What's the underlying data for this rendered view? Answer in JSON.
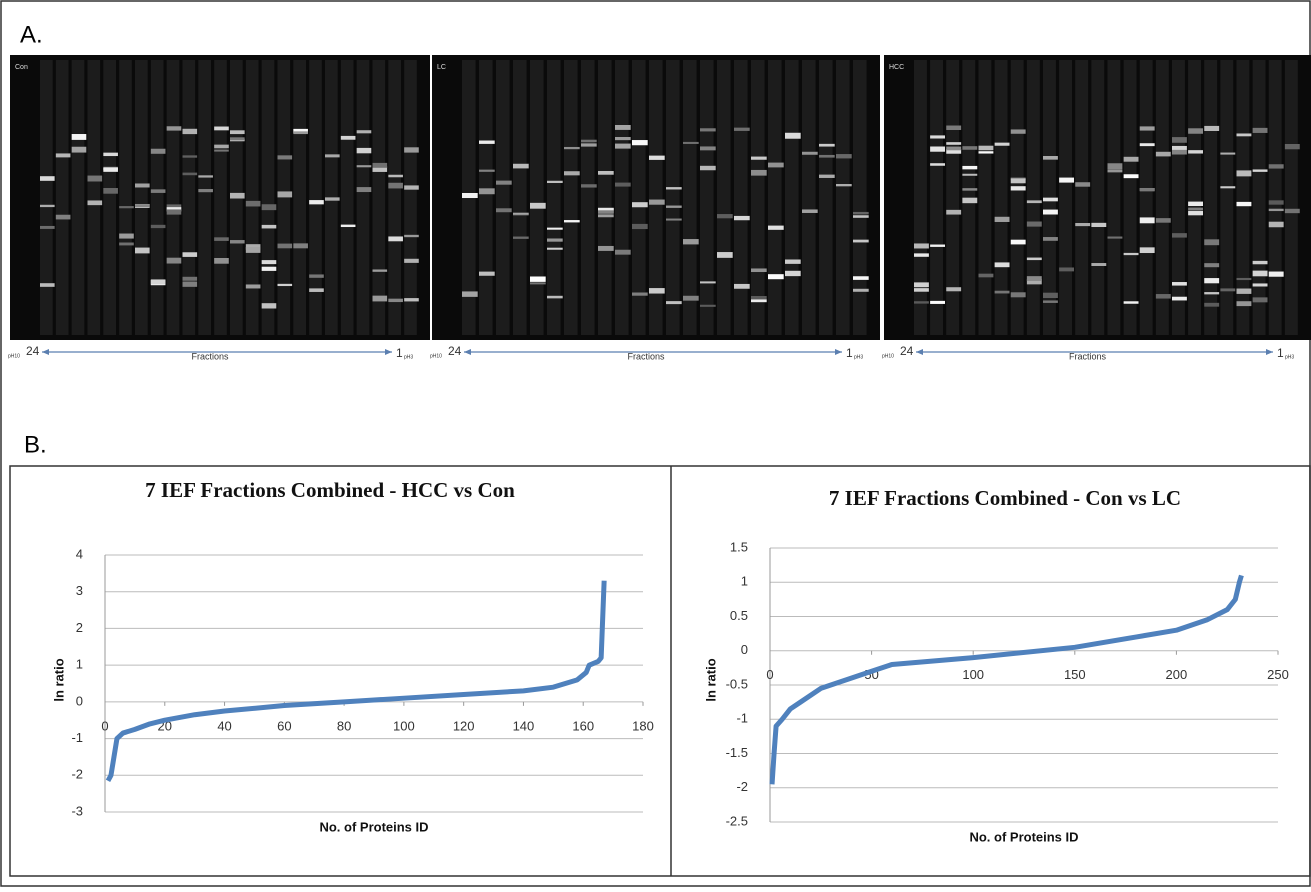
{
  "panel_labels": [
    "A.",
    "B."
  ],
  "gels": [
    {
      "label": "Con",
      "start": "24",
      "start_ph": "pH10",
      "middle": "Fractions",
      "end": "1",
      "end_ph": "pH3"
    },
    {
      "label": "LC",
      "start": "24",
      "start_ph": "pH10",
      "middle": "Fractions",
      "end": "1",
      "end_ph": "pH3"
    },
    {
      "label": "HCC",
      "start": "24",
      "start_ph": "pH10",
      "middle": "Fractions",
      "end": "1",
      "end_ph": "pH3"
    }
  ],
  "chart_data": [
    {
      "type": "line",
      "title": "7 IEF Fractions Combined - HCC vs Con",
      "x_label": "No. of Proteins ID",
      "y_label": "ln ratio",
      "x": [
        1,
        2,
        3,
        4,
        6,
        10,
        15,
        20,
        30,
        40,
        60,
        80,
        100,
        120,
        140,
        150,
        158,
        161,
        162,
        165,
        166,
        167
      ],
      "values": [
        -2.15,
        -2.0,
        -1.5,
        -1.0,
        -0.85,
        -0.75,
        -0.6,
        -0.5,
        -0.35,
        -0.25,
        -0.1,
        0,
        0.1,
        0.2,
        0.3,
        0.4,
        0.6,
        0.8,
        1.0,
        1.1,
        1.2,
        3.3
      ],
      "color": "#4f81bd",
      "xlim": [
        0,
        180
      ],
      "xticks": [
        0,
        20,
        40,
        60,
        80,
        100,
        120,
        140,
        160,
        180
      ],
      "ylim": [
        -3,
        4
      ],
      "yticks": [
        -3,
        -2,
        -1,
        0,
        1,
        2,
        3,
        4
      ],
      "grid": true
    },
    {
      "type": "line",
      "title": "7 IEF Fractions Combined - Con vs LC",
      "x_label": "No. of Proteins ID",
      "y_label": "ln ratio",
      "x": [
        1,
        2,
        3,
        6,
        10,
        15,
        25,
        40,
        50,
        60,
        100,
        150,
        180,
        200,
        215,
        225,
        229,
        231,
        232
      ],
      "values": [
        -1.95,
        -1.5,
        -1.1,
        -1.0,
        -0.85,
        -0.75,
        -0.55,
        -0.4,
        -0.3,
        -0.2,
        -0.1,
        0.05,
        0.2,
        0.3,
        0.45,
        0.6,
        0.75,
        1.0,
        1.1
      ],
      "color": "#4f81bd",
      "xlim": [
        0,
        250
      ],
      "xticks": [
        0,
        50,
        100,
        150,
        200,
        250
      ],
      "ylim": [
        -2.5,
        1.5
      ],
      "yticks": [
        -2.5,
        -2,
        -1.5,
        -1,
        -0.5,
        0,
        0.5,
        1,
        1.5
      ],
      "grid": true
    }
  ]
}
